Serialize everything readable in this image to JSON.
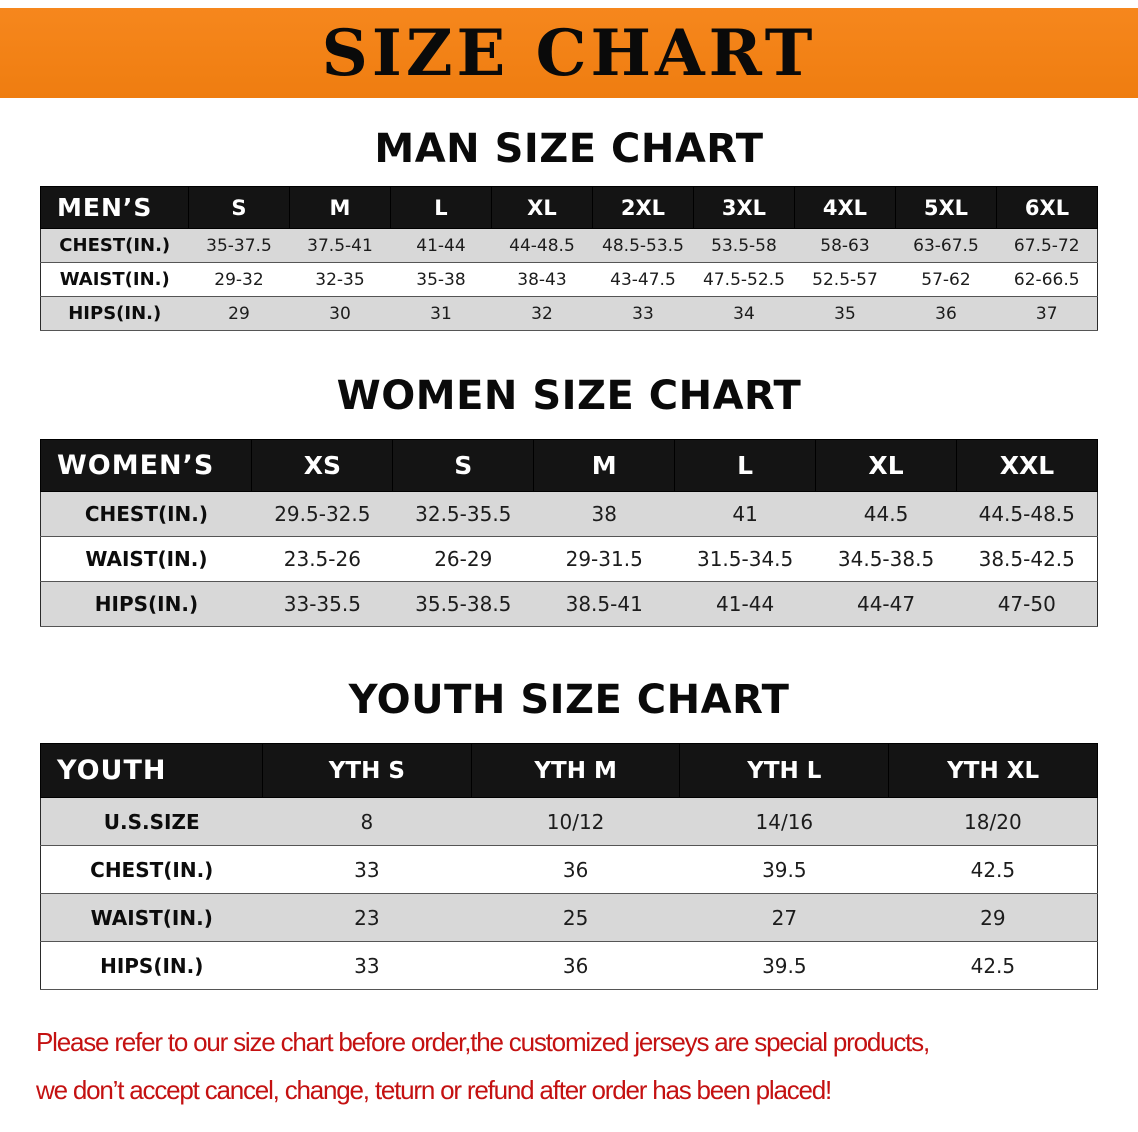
{
  "banner": {
    "title": "SIZE CHART"
  },
  "theme": {
    "banner_orange": "#f6871d",
    "header_black": "#141414",
    "row_shaded_gray": "#d8d8d8",
    "disclaimer_red": "#c41111"
  },
  "headings": {
    "men": "MAN SIZE CHART",
    "women": "WOMEN SIZE CHART",
    "youth": "YOUTH SIZE CHART"
  },
  "tables": {
    "men": {
      "header_label": "MEN’S",
      "label_width": "14%",
      "columns": [
        "S",
        "M",
        "L",
        "XL",
        "2XL",
        "3XL",
        "4XL",
        "5XL",
        "6XL"
      ],
      "rows": [
        {
          "label": "CHEST(IN.)",
          "shaded": true,
          "values": [
            "35-37.5",
            "37.5-41",
            "41-44",
            "44-48.5",
            "48.5-53.5",
            "53.5-58",
            "58-63",
            "63-67.5",
            "67.5-72"
          ]
        },
        {
          "label": "WAIST(IN.)",
          "shaded": false,
          "values": [
            "29-32",
            "32-35",
            "35-38",
            "38-43",
            "43-47.5",
            "47.5-52.5",
            "52.5-57",
            "57-62",
            "62-66.5"
          ]
        },
        {
          "label": "HIPS(IN.)",
          "shaded": true,
          "values": [
            "29",
            "30",
            "31",
            "32",
            "33",
            "34",
            "35",
            "36",
            "37"
          ]
        }
      ]
    },
    "women": {
      "header_label": "WOMEN’S",
      "label_width": "20%",
      "columns": [
        "XS",
        "S",
        "M",
        "L",
        "XL",
        "XXL"
      ],
      "rows": [
        {
          "label": "CHEST(IN.)",
          "shaded": true,
          "values": [
            "29.5-32.5",
            "32.5-35.5",
            "38",
            "41",
            "44.5",
            "44.5-48.5"
          ]
        },
        {
          "label": "WAIST(IN.)",
          "shaded": false,
          "values": [
            "23.5-26",
            "26-29",
            "29-31.5",
            "31.5-34.5",
            "34.5-38.5",
            "38.5-42.5"
          ]
        },
        {
          "label": "HIPS(IN.)",
          "shaded": true,
          "values": [
            "33-35.5",
            "35.5-38.5",
            "38.5-41",
            "41-44",
            "44-47",
            "47-50"
          ]
        }
      ]
    },
    "youth": {
      "header_label": "YOUTH",
      "label_width": "21%",
      "columns": [
        "YTH S",
        "YTH M",
        "YTH L",
        "YTH XL"
      ],
      "rows": [
        {
          "label": "U.S.SIZE",
          "shaded": true,
          "values": [
            "8",
            "10/12",
            "14/16",
            "18/20"
          ]
        },
        {
          "label": "CHEST(IN.)",
          "shaded": false,
          "values": [
            "33",
            "36",
            "39.5",
            "42.5"
          ]
        },
        {
          "label": "WAIST(IN.)",
          "shaded": true,
          "values": [
            "23",
            "25",
            "27",
            "29"
          ]
        },
        {
          "label": "HIPS(IN.)",
          "shaded": false,
          "values": [
            "33",
            "36",
            "39.5",
            "42.5"
          ]
        }
      ]
    }
  },
  "disclaimer": {
    "line1": "Please refer to our size chart before order,the customized jerseys are special products,",
    "line2": "we don’t accept cancel, change, teturn or refund after order has been placed!"
  }
}
